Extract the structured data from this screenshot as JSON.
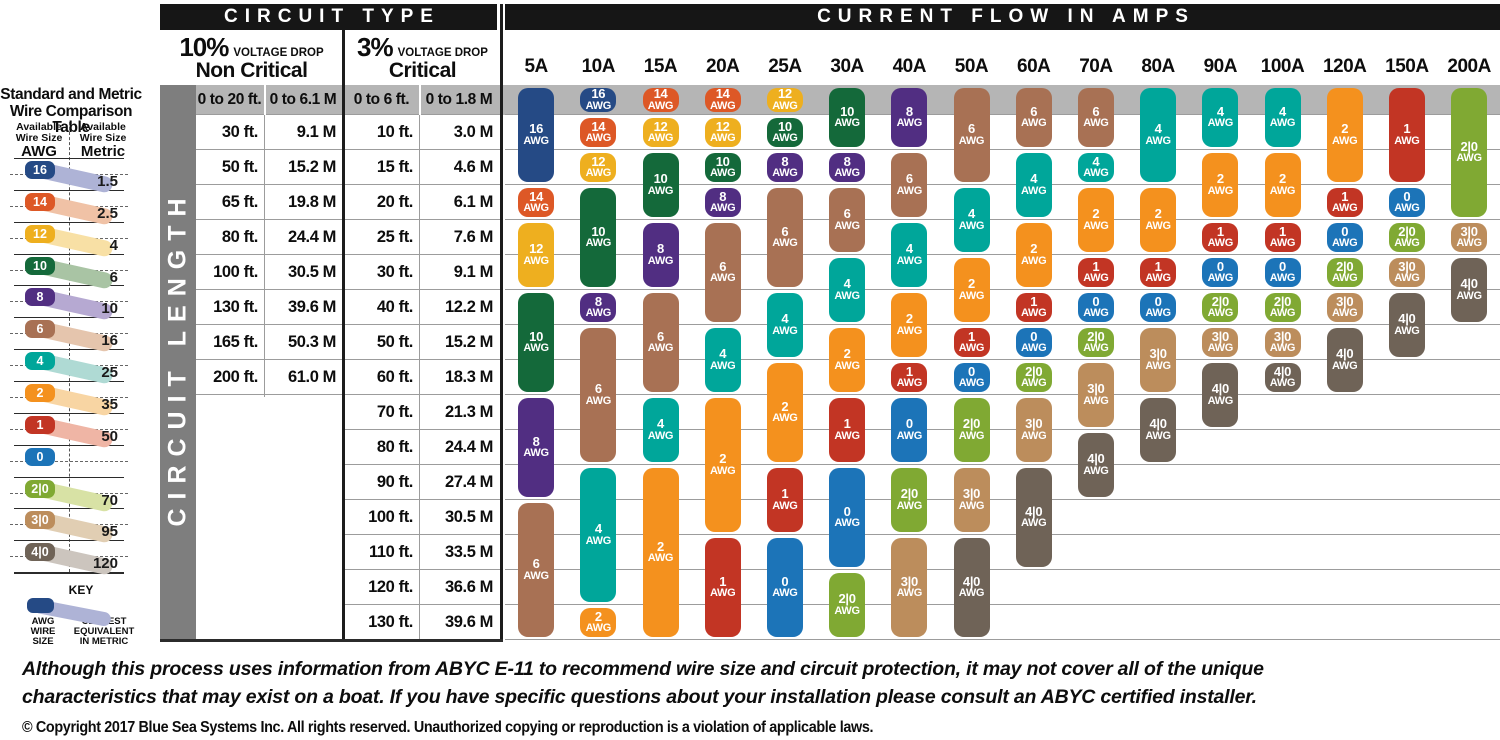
{
  "bars": {
    "circuit_type": "CIRCUIT TYPE",
    "current_flow": "CURRENT FLOW IN AMPS"
  },
  "circuit_length_label": "CIRCUIT LENGTH",
  "voltage_headers": [
    {
      "pct": "10%",
      "drop": "VOLTAGE DROP",
      "label": "Non Critical"
    },
    {
      "pct": "3%",
      "drop": "VOLTAGE DROP",
      "label": "Critical"
    }
  ],
  "chart_data": {
    "type": "table",
    "title": "CURRENT FLOW IN AMPS",
    "row_axis": "CIRCUIT LENGTH",
    "columns": [
      "5A",
      "10A",
      "15A",
      "20A",
      "25A",
      "30A",
      "40A",
      "50A",
      "60A",
      "70A",
      "80A",
      "90A",
      "100A",
      "120A",
      "150A",
      "200A"
    ],
    "length_rows": [
      {
        "ft10": "0 to 20 ft.",
        "m10": "0 to 6.1 M",
        "ft3": "0 to 6 ft.",
        "m3": "0 to 1.8 M"
      },
      {
        "ft10": "30 ft.",
        "m10": "9.1 M",
        "ft3": "10 ft.",
        "m3": "3.0 M"
      },
      {
        "ft10": "50 ft.",
        "m10": "15.2 M",
        "ft3": "15 ft.",
        "m3": "4.6 M"
      },
      {
        "ft10": "65 ft.",
        "m10": "19.8 M",
        "ft3": "20 ft.",
        "m3": "6.1 M"
      },
      {
        "ft10": "80 ft.",
        "m10": "24.4 M",
        "ft3": "25 ft.",
        "m3": "7.6 M"
      },
      {
        "ft10": "100 ft.",
        "m10": "30.5 M",
        "ft3": "30 ft.",
        "m3": "9.1 M"
      },
      {
        "ft10": "130 ft.",
        "m10": "39.6 M",
        "ft3": "40 ft.",
        "m3": "12.2 M"
      },
      {
        "ft10": "165 ft.",
        "m10": "50.3 M",
        "ft3": "50 ft.",
        "m3": "15.2 M"
      },
      {
        "ft10": "200 ft.",
        "m10": "61.0 M",
        "ft3": "60 ft.",
        "m3": "18.3 M"
      },
      {
        "ft10": "",
        "m10": "",
        "ft3": "70 ft.",
        "m3": "21.3 M"
      },
      {
        "ft10": "",
        "m10": "",
        "ft3": "80 ft.",
        "m3": "24.4 M"
      },
      {
        "ft10": "",
        "m10": "",
        "ft3": "90 ft.",
        "m3": "27.4 M"
      },
      {
        "ft10": "",
        "m10": "",
        "ft3": "100 ft.",
        "m3": "30.5 M"
      },
      {
        "ft10": "",
        "m10": "",
        "ft3": "110 ft.",
        "m3": "33.5 M"
      },
      {
        "ft10": "",
        "m10": "",
        "ft3": "120 ft.",
        "m3": "36.6 M"
      },
      {
        "ft10": "",
        "m10": "",
        "ft3": "130 ft.",
        "m3": "39.6 M"
      }
    ],
    "cells": {
      "5A": [
        {
          "awg": "16",
          "row_start": 1,
          "row_end": 3
        },
        {
          "awg": "14",
          "row_start": 4,
          "row_end": 4
        },
        {
          "awg": "12",
          "row_start": 5,
          "row_end": 6
        },
        {
          "awg": "10",
          "row_start": 7,
          "row_end": 9
        },
        {
          "awg": "8",
          "row_start": 10,
          "row_end": 12
        },
        {
          "awg": "6",
          "row_start": 13,
          "row_end": 16
        }
      ],
      "10A": [
        {
          "awg": "16",
          "row_start": 1,
          "row_end": 1
        },
        {
          "awg": "14",
          "row_start": 2,
          "row_end": 2
        },
        {
          "awg": "12",
          "row_start": 3,
          "row_end": 3
        },
        {
          "awg": "10",
          "row_start": 4,
          "row_end": 6
        },
        {
          "awg": "8",
          "row_start": 7,
          "row_end": 7
        },
        {
          "awg": "6",
          "row_start": 8,
          "row_end": 11
        },
        {
          "awg": "4",
          "row_start": 12,
          "row_end": 15
        },
        {
          "awg": "2",
          "row_start": 16,
          "row_end": 16
        }
      ],
      "15A": [
        {
          "awg": "14",
          "row_start": 1,
          "row_end": 1
        },
        {
          "awg": "12",
          "row_start": 2,
          "row_end": 2
        },
        {
          "awg": "10",
          "row_start": 3,
          "row_end": 4
        },
        {
          "awg": "8",
          "row_start": 5,
          "row_end": 6
        },
        {
          "awg": "6",
          "row_start": 7,
          "row_end": 9
        },
        {
          "awg": "4",
          "row_start": 10,
          "row_end": 11
        },
        {
          "awg": "2",
          "row_start": 12,
          "row_end": 16
        }
      ],
      "20A": [
        {
          "awg": "14",
          "row_start": 1,
          "row_end": 1
        },
        {
          "awg": "12",
          "row_start": 2,
          "row_end": 2
        },
        {
          "awg": "10",
          "row_start": 3,
          "row_end": 3
        },
        {
          "awg": "8",
          "row_start": 4,
          "row_end": 4
        },
        {
          "awg": "6",
          "row_start": 5,
          "row_end": 7
        },
        {
          "awg": "4",
          "row_start": 8,
          "row_end": 9
        },
        {
          "awg": "2",
          "row_start": 10,
          "row_end": 13
        },
        {
          "awg": "1",
          "row_start": 14,
          "row_end": 16
        }
      ],
      "25A": [
        {
          "awg": "12",
          "row_start": 1,
          "row_end": 1
        },
        {
          "awg": "10",
          "row_start": 2,
          "row_end": 2
        },
        {
          "awg": "8",
          "row_start": 3,
          "row_end": 3
        },
        {
          "awg": "6",
          "row_start": 4,
          "row_end": 6
        },
        {
          "awg": "4",
          "row_start": 7,
          "row_end": 8
        },
        {
          "awg": "2",
          "row_start": 9,
          "row_end": 11
        },
        {
          "awg": "1",
          "row_start": 12,
          "row_end": 13
        },
        {
          "awg": "0",
          "row_start": 14,
          "row_end": 16
        }
      ],
      "30A": [
        {
          "awg": "10",
          "row_start": 1,
          "row_end": 2
        },
        {
          "awg": "8",
          "row_start": 3,
          "row_end": 3
        },
        {
          "awg": "6",
          "row_start": 4,
          "row_end": 5
        },
        {
          "awg": "4",
          "row_start": 6,
          "row_end": 7
        },
        {
          "awg": "2",
          "row_start": 8,
          "row_end": 9
        },
        {
          "awg": "1",
          "row_start": 10,
          "row_end": 11
        },
        {
          "awg": "0",
          "row_start": 12,
          "row_end": 14
        },
        {
          "awg": "2|0",
          "row_start": 15,
          "row_end": 16
        }
      ],
      "40A": [
        {
          "awg": "8",
          "row_start": 1,
          "row_end": 2
        },
        {
          "awg": "6",
          "row_start": 3,
          "row_end": 4
        },
        {
          "awg": "4",
          "row_start": 5,
          "row_end": 6
        },
        {
          "awg": "2",
          "row_start": 7,
          "row_end": 8
        },
        {
          "awg": "1",
          "row_start": 9,
          "row_end": 9
        },
        {
          "awg": "0",
          "row_start": 10,
          "row_end": 11
        },
        {
          "awg": "2|0",
          "row_start": 12,
          "row_end": 13
        },
        {
          "awg": "3|0",
          "row_start": 14,
          "row_end": 16
        }
      ],
      "50A": [
        {
          "awg": "6",
          "row_start": 1,
          "row_end": 3
        },
        {
          "awg": "4",
          "row_start": 4,
          "row_end": 5
        },
        {
          "awg": "2",
          "row_start": 6,
          "row_end": 7
        },
        {
          "awg": "1",
          "row_start": 8,
          "row_end": 8
        },
        {
          "awg": "0",
          "row_start": 9,
          "row_end": 9
        },
        {
          "awg": "2|0",
          "row_start": 10,
          "row_end": 11
        },
        {
          "awg": "3|0",
          "row_start": 12,
          "row_end": 13
        },
        {
          "awg": "4|0",
          "row_start": 14,
          "row_end": 16
        }
      ],
      "60A": [
        {
          "awg": "6",
          "row_start": 1,
          "row_end": 2
        },
        {
          "awg": "4",
          "row_start": 3,
          "row_end": 4
        },
        {
          "awg": "2",
          "row_start": 5,
          "row_end": 6
        },
        {
          "awg": "1",
          "row_start": 7,
          "row_end": 7
        },
        {
          "awg": "0",
          "row_start": 8,
          "row_end": 8
        },
        {
          "awg": "2|0",
          "row_start": 9,
          "row_end": 9
        },
        {
          "awg": "3|0",
          "row_start": 10,
          "row_end": 11
        },
        {
          "awg": "4|0",
          "row_start": 12,
          "row_end": 14
        }
      ],
      "70A": [
        {
          "awg": "6",
          "row_start": 1,
          "row_end": 2
        },
        {
          "awg": "4",
          "row_start": 3,
          "row_end": 3
        },
        {
          "awg": "2",
          "row_start": 4,
          "row_end": 5
        },
        {
          "awg": "1",
          "row_start": 6,
          "row_end": 6
        },
        {
          "awg": "0",
          "row_start": 7,
          "row_end": 7
        },
        {
          "awg": "2|0",
          "row_start": 8,
          "row_end": 8
        },
        {
          "awg": "3|0",
          "row_start": 9,
          "row_end": 10
        },
        {
          "awg": "4|0",
          "row_start": 11,
          "row_end": 12
        }
      ],
      "80A": [
        {
          "awg": "4",
          "row_start": 1,
          "row_end": 3
        },
        {
          "awg": "2",
          "row_start": 4,
          "row_end": 5
        },
        {
          "awg": "1",
          "row_start": 6,
          "row_end": 6
        },
        {
          "awg": "0",
          "row_start": 7,
          "row_end": 7
        },
        {
          "awg": "3|0",
          "row_start": 8,
          "row_end": 9
        },
        {
          "awg": "4|0",
          "row_start": 10,
          "row_end": 11
        }
      ],
      "90A": [
        {
          "awg": "4",
          "row_start": 1,
          "row_end": 2
        },
        {
          "awg": "2",
          "row_start": 3,
          "row_end": 4
        },
        {
          "awg": "1",
          "row_start": 5,
          "row_end": 5
        },
        {
          "awg": "0",
          "row_start": 6,
          "row_end": 6
        },
        {
          "awg": "2|0",
          "row_start": 7,
          "row_end": 7
        },
        {
          "awg": "3|0",
          "row_start": 8,
          "row_end": 8
        },
        {
          "awg": "4|0",
          "row_start": 9,
          "row_end": 10
        }
      ],
      "100A": [
        {
          "awg": "4",
          "row_start": 1,
          "row_end": 2
        },
        {
          "awg": "2",
          "row_start": 3,
          "row_end": 4
        },
        {
          "awg": "1",
          "row_start": 5,
          "row_end": 5
        },
        {
          "awg": "0",
          "row_start": 6,
          "row_end": 6
        },
        {
          "awg": "2|0",
          "row_start": 7,
          "row_end": 7
        },
        {
          "awg": "3|0",
          "row_start": 8,
          "row_end": 8
        },
        {
          "awg": "4|0",
          "row_start": 9,
          "row_end": 9
        }
      ],
      "120A": [
        {
          "awg": "2",
          "row_start": 1,
          "row_end": 3
        },
        {
          "awg": "1",
          "row_start": 4,
          "row_end": 4
        },
        {
          "awg": "0",
          "row_start": 5,
          "row_end": 5
        },
        {
          "awg": "2|0",
          "row_start": 6,
          "row_end": 6
        },
        {
          "awg": "3|0",
          "row_start": 7,
          "row_end": 7
        },
        {
          "awg": "4|0",
          "row_start": 8,
          "row_end": 9
        }
      ],
      "150A": [
        {
          "awg": "1",
          "row_start": 1,
          "row_end": 3
        },
        {
          "awg": "0",
          "row_start": 4,
          "row_end": 4
        },
        {
          "awg": "2|0",
          "row_start": 5,
          "row_end": 5
        },
        {
          "awg": "3|0",
          "row_start": 6,
          "row_end": 6
        },
        {
          "awg": "4|0",
          "row_start": 7,
          "row_end": 8
        }
      ],
      "200A": [
        {
          "awg": "2|0",
          "row_start": 1,
          "row_end": 4
        },
        {
          "awg": "3|0",
          "row_start": 5,
          "row_end": 5
        },
        {
          "awg": "4|0",
          "row_start": 6,
          "row_end": 7
        }
      ]
    }
  },
  "awg_colors": {
    "16": "#254A85",
    "14": "#DD5826",
    "12": "#EEAF1F",
    "10": "#14693A",
    "8": "#512E82",
    "6": "#A87154",
    "4": "#00A69A",
    "2": "#F4911E",
    "1": "#C23524",
    "0": "#1C74B8",
    "2|0": "#80A933",
    "3|0": "#BC8D5C",
    "4|0": "#6F6357"
  },
  "band_colors": {
    "16": "#AEB3D6",
    "14": "#F0C2A6",
    "12": "#F8E0A5",
    "10": "#A9C4A4",
    "8": "#B6A9D2",
    "6": "#E5C5AD",
    "4": "#AFDAD4",
    "2": "#F8D5A3",
    "1": "#EFB5A5",
    "2|0": "#D8E2A5",
    "3|0": "#E1CEB3",
    "4|0": "#CCC5BE"
  },
  "grays": {
    "band": "#B5B5B5",
    "length_bar": "#7E7E7E",
    "gridline": "#9C9C9C",
    "bar_bg": "#161616"
  },
  "wire_comparison": {
    "title_line1": "Standard and Metric",
    "title_line2": "Wire Comparison Table",
    "left_header": {
      "l1": "Available",
      "l2": "Wire Size",
      "l3": "AWG"
    },
    "right_header": {
      "l1": "Available",
      "l2": "Wire Size",
      "l3": "Metric"
    },
    "rows": [
      {
        "awg": "16",
        "metric": "1.5"
      },
      {
        "awg": "14",
        "metric": "2.5"
      },
      {
        "awg": "12",
        "metric": "4"
      },
      {
        "awg": "10",
        "metric": "6"
      },
      {
        "awg": "8",
        "metric": "10"
      },
      {
        "awg": "6",
        "metric": "16"
      },
      {
        "awg": "4",
        "metric": "25"
      },
      {
        "awg": "2",
        "metric": "35"
      },
      {
        "awg": "1",
        "metric": "50"
      },
      {
        "awg": "0",
        "metric": ""
      },
      {
        "awg": "2|0",
        "metric": "70"
      },
      {
        "awg": "3|0",
        "metric": "95"
      },
      {
        "awg": "4|0",
        "metric": "120"
      }
    ],
    "key": {
      "title": "KEY",
      "left_label": "AWG\nWIRE\nSIZE",
      "right_label": "CLOSEST\nEQUIVALENT\nIN METRIC"
    }
  },
  "footer": {
    "disclaimer_line1": "Although this process uses information from ABYC E-11 to recommend wire size and circuit protection, it may not cover all of the unique",
    "disclaimer_line2": "characteristics that may exist on a boat. If you have specific questions about your installation please consult an ABYC certified installer.",
    "copyright": "© Copyright 2017 Blue Sea Systems Inc. All rights reserved. Unauthorized copying or reproduction is a violation of applicable laws."
  }
}
